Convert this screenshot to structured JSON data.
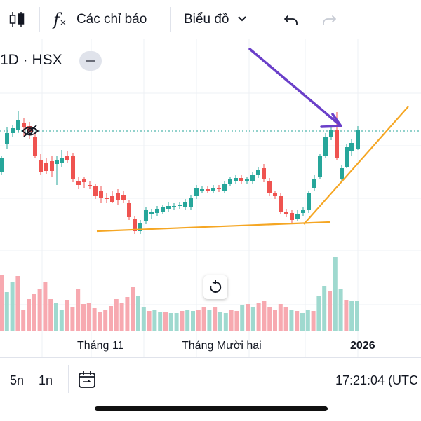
{
  "toolbar": {
    "indicators_label": "Các chỉ báo",
    "chart_type_label": "Biểu đồ"
  },
  "symbol": {
    "text": "1D · HSX"
  },
  "time_axis": {
    "labels": [
      "Tháng 11",
      "Tháng Mười hai",
      "2026"
    ]
  },
  "bottom_bar": {
    "range_5d": "5n",
    "range_1m": "1n",
    "clock": "17:21:04 (UTC"
  },
  "colors": {
    "up": "#26a69a",
    "down": "#ef5350",
    "volume_up": "#9fd9cf",
    "volume_down": "#f7a9b0",
    "trend_lines": "#f5a623",
    "arrow": "#6a3fc9"
  },
  "icons": [
    "candles-icon",
    "fx-icon",
    "chevron-down-icon",
    "undo-icon",
    "redo-icon",
    "minus-icon",
    "eye-off-icon",
    "reset-icon",
    "date-range-icon"
  ]
}
